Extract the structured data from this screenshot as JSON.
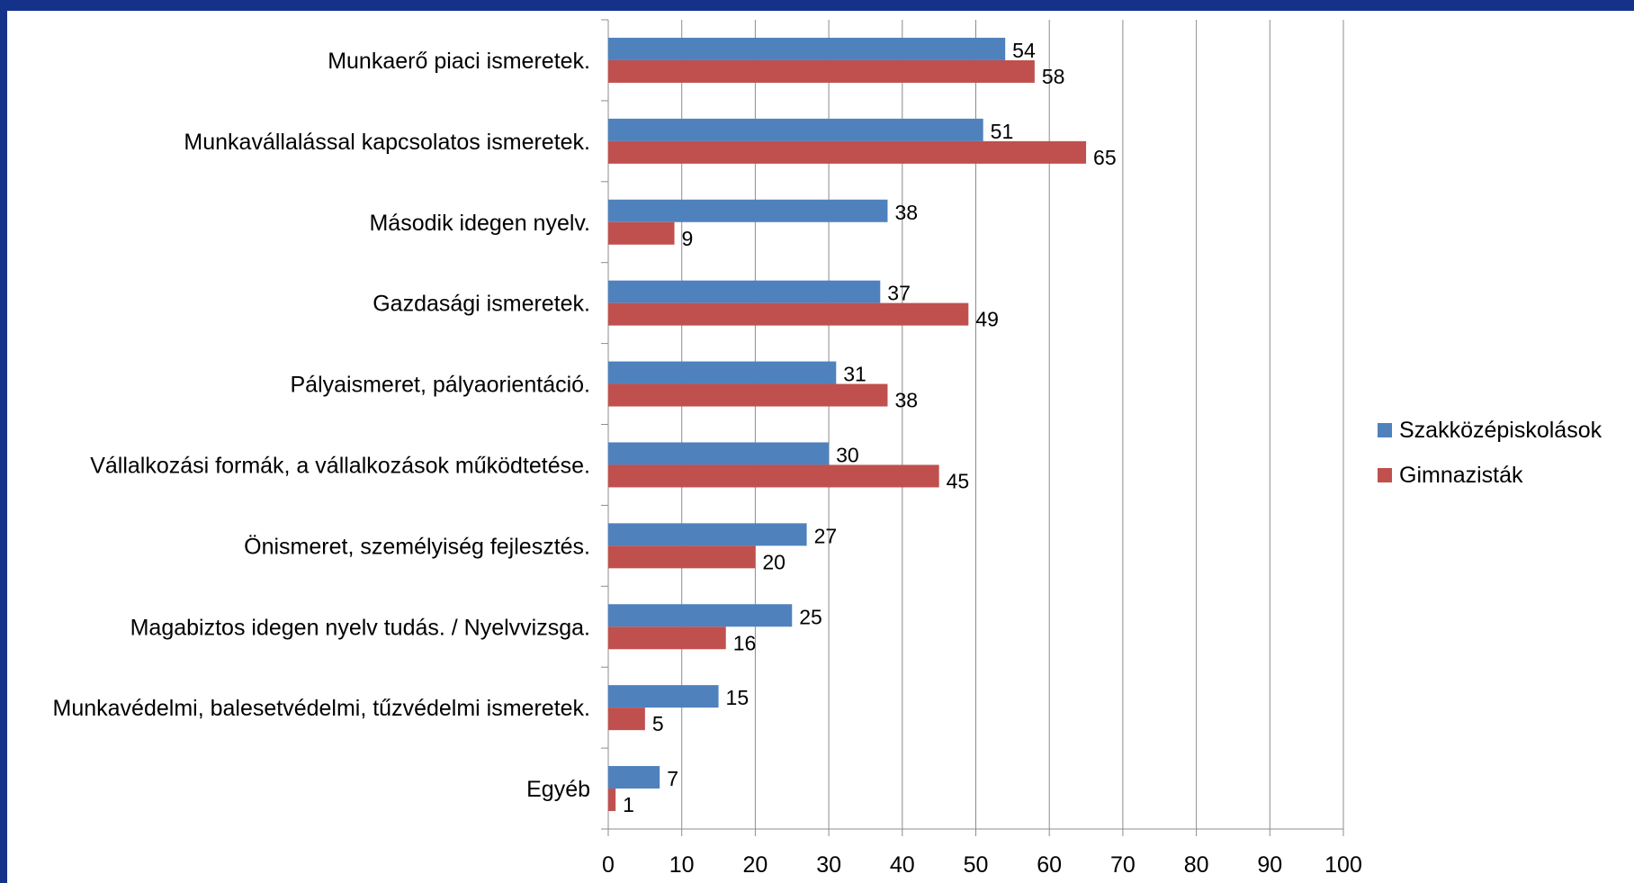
{
  "chart_data": {
    "type": "bar",
    "orientation": "horizontal",
    "categories": [
      "Munkaerő piaci ismeretek.",
      "Munkavállalással kapcsolatos ismeretek.",
      "Második idegen nyelv.",
      "Gazdasági ismeretek.",
      "Pályaismeret, pályaorientáció.",
      "Vállalkozási formák, a vállalkozások működtetése.",
      "Önismeret, személyiség fejlesztés.",
      "Magabiztos idegen nyelv tudás. / Nyelvvizsga.",
      "Munkavédelmi, balesetvédelmi, tűzvédelmi ismeretek.",
      "Egyéb"
    ],
    "series": [
      {
        "name": "Szakközépiskolások",
        "color": "#4f81bd",
        "values": [
          54,
          51,
          38,
          37,
          31,
          30,
          27,
          25,
          15,
          7
        ]
      },
      {
        "name": "Gimnazisták",
        "color": "#c0504d",
        "values": [
          58,
          65,
          9,
          49,
          38,
          45,
          20,
          16,
          5,
          1
        ]
      }
    ],
    "xlim": [
      0,
      100
    ],
    "xticks": [
      0,
      10,
      20,
      30,
      40,
      50,
      60,
      70,
      80,
      90,
      100
    ],
    "grid": true,
    "legend_position": "right",
    "title": "",
    "xlabel": "",
    "ylabel": ""
  }
}
